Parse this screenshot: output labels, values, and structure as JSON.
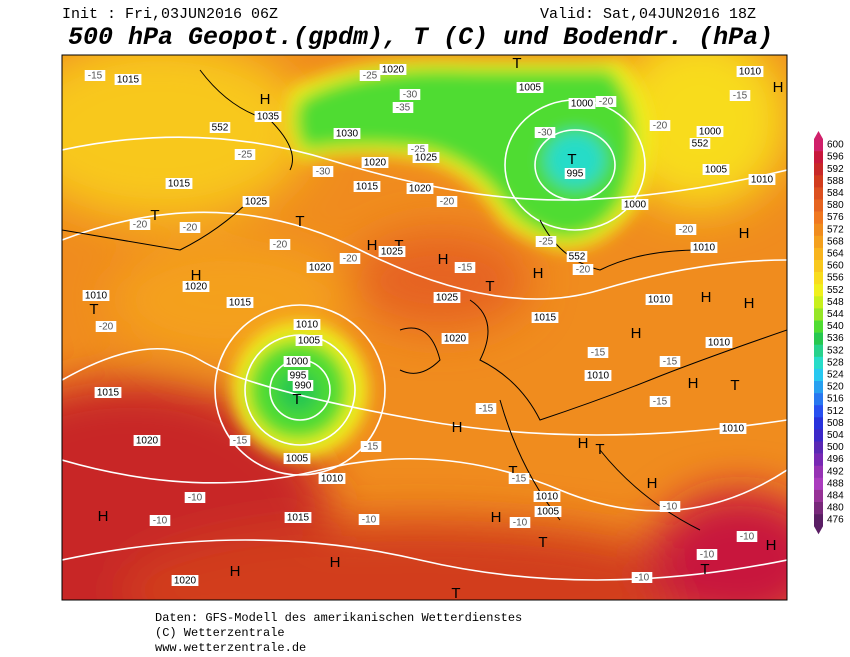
{
  "header": {
    "init": "Init : Fri,03JUN2016 06Z",
    "valid": "Valid: Sat,04JUN2016 18Z",
    "title": "500 hPa Geopot.(gpdm), T (C) und Bodendr. (hPa)"
  },
  "legend": {
    "levels": [
      600,
      596,
      592,
      588,
      584,
      580,
      576,
      572,
      568,
      564,
      560,
      556,
      552,
      548,
      544,
      540,
      536,
      532,
      528,
      524,
      520,
      516,
      512,
      508,
      504,
      500,
      496,
      492,
      488,
      484,
      480,
      476
    ],
    "colors": [
      "#d0206a",
      "#c8183c",
      "#c82828",
      "#d23c1e",
      "#dc5020",
      "#e66420",
      "#f07820",
      "#f08c1e",
      "#f4a01e",
      "#f8b41e",
      "#f8c81e",
      "#f8dc1e",
      "#f0f01e",
      "#c8f01e",
      "#96e628",
      "#50dc32",
      "#28c850",
      "#28d28c",
      "#28dcc8",
      "#28c8f0",
      "#28a0f0",
      "#2878f0",
      "#2850f0",
      "#2832dc",
      "#3c28c8",
      "#5a28b4",
      "#7828b4",
      "#9632b4",
      "#aa3cbe",
      "#963296",
      "#78287a",
      "#5a1e64"
    ]
  },
  "map": {
    "labels": [
      "1015",
      "-15",
      "1035",
      "H",
      "552",
      "-25",
      "1020",
      "-25",
      "-35",
      "-30",
      "1030",
      "T",
      "1005",
      "1000",
      "-20",
      "-30",
      "T",
      "995",
      "1010",
      "H",
      "-15",
      "-20",
      "1000",
      "552",
      "1005",
      "1010",
      "1015",
      "T",
      "1025",
      "T",
      "-20",
      "-20",
      "1020",
      "-25",
      "1025",
      "1015",
      "1020",
      "-20",
      "-30",
      "H",
      "T",
      "1025",
      "H",
      "-20",
      "1020",
      "-20",
      "H",
      "1020",
      "1010",
      "T",
      "-20",
      "1015",
      "1010",
      "1005",
      "1000",
      "995",
      "990",
      "T",
      "1015",
      "1025",
      "T",
      "-15",
      "H",
      "-20",
      "552",
      "-25",
      "1000",
      "-20",
      "H",
      "1010",
      "1010",
      "H",
      "H",
      "1010",
      "1020",
      "1015",
      "H",
      "-15",
      "1010",
      "-15",
      "H",
      "T",
      "-15",
      "1010",
      "-15",
      "H",
      "H",
      "T",
      "-15",
      "1020",
      "1005",
      "-15",
      "1010",
      "T",
      "-15",
      "H",
      "-10",
      "1010",
      "1005",
      "-10",
      "H",
      "-10",
      "H",
      "1015",
      "-10",
      "-10",
      "T",
      "H",
      "H",
      "1020",
      "T",
      "-10",
      "-10",
      "T",
      "-10",
      "H"
    ]
  },
  "footer": {
    "lines": [
      "Daten: GFS-Modell des amerikanischen Wetterdienstes",
      "(C) Wetterzentrale",
      "www.wetterzentrale.de"
    ]
  }
}
